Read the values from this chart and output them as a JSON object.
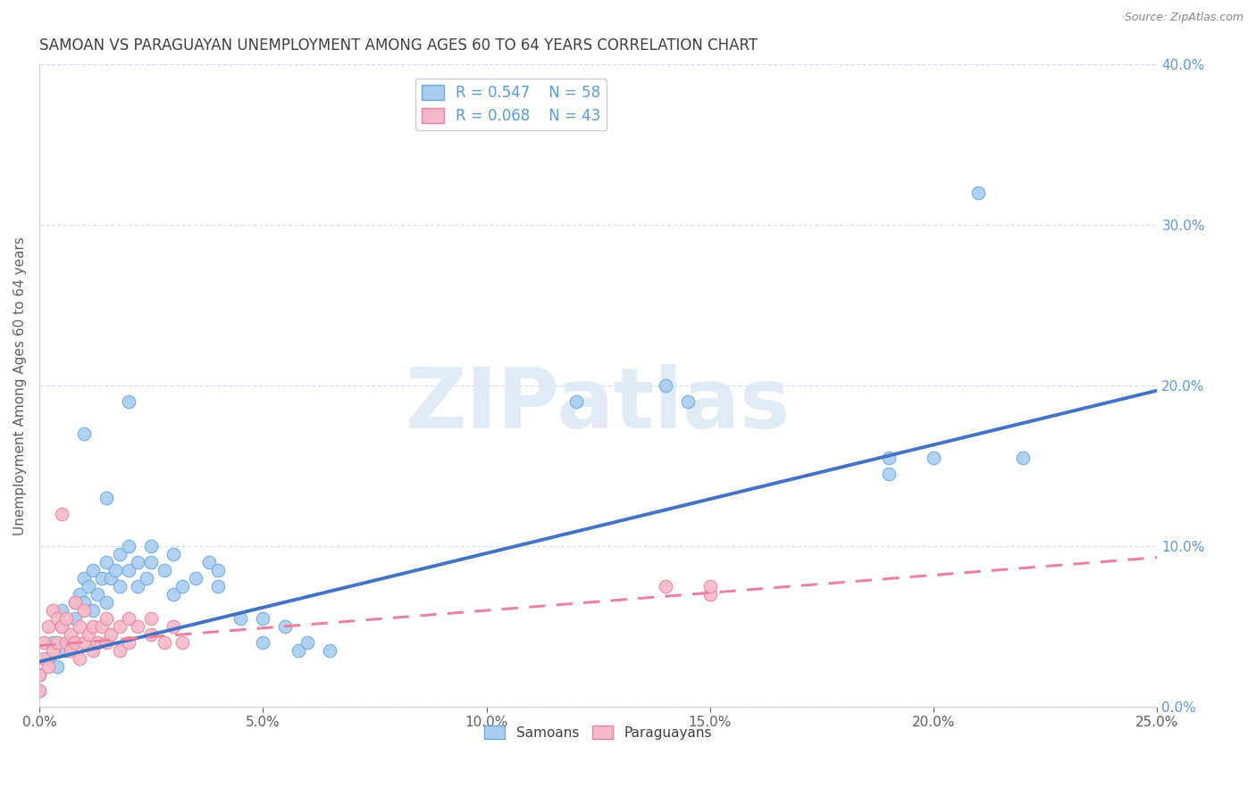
{
  "title": "SAMOAN VS PARAGUAYAN UNEMPLOYMENT AMONG AGES 60 TO 64 YEARS CORRELATION CHART",
  "source": "Source: ZipAtlas.com",
  "xlim": [
    0.0,
    0.25
  ],
  "ylim": [
    0.0,
    0.4
  ],
  "samoan_R": 0.547,
  "samoan_N": 58,
  "paraguayan_R": 0.068,
  "paraguayan_N": 43,
  "samoan_color": "#a8ccf0",
  "paraguayan_color": "#f5b8c8",
  "samoan_edge_color": "#6aaade",
  "paraguayan_edge_color": "#e882a0",
  "samoan_line_color": "#4472c4",
  "paraguayan_line_color": "#e882a0",
  "title_fontsize": 12,
  "title_color": "#404040",
  "axis_label": "Unemployment Among Ages 60 to 64 years",
  "axis_label_color": "#606060",
  "tick_color_y": "#5b9bd5",
  "tick_color_x": "#606060",
  "watermark_text": "ZIPatlas",
  "watermark_color": "#dce8f5",
  "background_color": "#ffffff",
  "grid_color": "#c8d8e8",
  "samoan_scatter": [
    [
      0.0,
      0.02
    ],
    [
      0.0,
      0.01
    ],
    [
      0.002,
      0.03
    ],
    [
      0.003,
      0.04
    ],
    [
      0.004,
      0.025
    ],
    [
      0.005,
      0.05
    ],
    [
      0.005,
      0.06
    ],
    [
      0.006,
      0.035
    ],
    [
      0.007,
      0.04
    ],
    [
      0.008,
      0.055
    ],
    [
      0.008,
      0.065
    ],
    [
      0.009,
      0.07
    ],
    [
      0.01,
      0.08
    ],
    [
      0.01,
      0.065
    ],
    [
      0.011,
      0.075
    ],
    [
      0.012,
      0.085
    ],
    [
      0.012,
      0.06
    ],
    [
      0.013,
      0.07
    ],
    [
      0.014,
      0.08
    ],
    [
      0.015,
      0.09
    ],
    [
      0.015,
      0.065
    ],
    [
      0.016,
      0.08
    ],
    [
      0.017,
      0.085
    ],
    [
      0.018,
      0.075
    ],
    [
      0.018,
      0.095
    ],
    [
      0.02,
      0.085
    ],
    [
      0.02,
      0.1
    ],
    [
      0.022,
      0.09
    ],
    [
      0.022,
      0.075
    ],
    [
      0.024,
      0.08
    ],
    [
      0.025,
      0.09
    ],
    [
      0.025,
      0.1
    ],
    [
      0.028,
      0.085
    ],
    [
      0.03,
      0.095
    ],
    [
      0.03,
      0.07
    ],
    [
      0.032,
      0.075
    ],
    [
      0.035,
      0.08
    ],
    [
      0.038,
      0.09
    ],
    [
      0.04,
      0.075
    ],
    [
      0.04,
      0.085
    ],
    [
      0.045,
      0.055
    ],
    [
      0.05,
      0.04
    ],
    [
      0.05,
      0.055
    ],
    [
      0.055,
      0.05
    ],
    [
      0.058,
      0.035
    ],
    [
      0.06,
      0.04
    ],
    [
      0.065,
      0.035
    ],
    [
      0.01,
      0.17
    ],
    [
      0.015,
      0.13
    ],
    [
      0.02,
      0.19
    ],
    [
      0.12,
      0.19
    ],
    [
      0.14,
      0.2
    ],
    [
      0.145,
      0.19
    ],
    [
      0.19,
      0.155
    ],
    [
      0.19,
      0.145
    ],
    [
      0.2,
      0.155
    ],
    [
      0.21,
      0.32
    ],
    [
      0.22,
      0.155
    ]
  ],
  "paraguayan_scatter": [
    [
      0.0,
      0.02
    ],
    [
      0.0,
      0.01
    ],
    [
      0.001,
      0.03
    ],
    [
      0.001,
      0.04
    ],
    [
      0.002,
      0.025
    ],
    [
      0.002,
      0.05
    ],
    [
      0.003,
      0.035
    ],
    [
      0.003,
      0.06
    ],
    [
      0.004,
      0.04
    ],
    [
      0.004,
      0.055
    ],
    [
      0.005,
      0.05
    ],
    [
      0.005,
      0.12
    ],
    [
      0.006,
      0.04
    ],
    [
      0.006,
      0.055
    ],
    [
      0.007,
      0.035
    ],
    [
      0.007,
      0.045
    ],
    [
      0.008,
      0.04
    ],
    [
      0.008,
      0.065
    ],
    [
      0.009,
      0.03
    ],
    [
      0.009,
      0.05
    ],
    [
      0.01,
      0.04
    ],
    [
      0.01,
      0.06
    ],
    [
      0.011,
      0.045
    ],
    [
      0.012,
      0.05
    ],
    [
      0.012,
      0.035
    ],
    [
      0.013,
      0.04
    ],
    [
      0.014,
      0.05
    ],
    [
      0.015,
      0.04
    ],
    [
      0.015,
      0.055
    ],
    [
      0.016,
      0.045
    ],
    [
      0.018,
      0.05
    ],
    [
      0.018,
      0.035
    ],
    [
      0.02,
      0.04
    ],
    [
      0.02,
      0.055
    ],
    [
      0.022,
      0.05
    ],
    [
      0.025,
      0.045
    ],
    [
      0.025,
      0.055
    ],
    [
      0.028,
      0.04
    ],
    [
      0.03,
      0.05
    ],
    [
      0.032,
      0.04
    ],
    [
      0.14,
      0.075
    ],
    [
      0.15,
      0.07
    ],
    [
      0.15,
      0.075
    ]
  ],
  "samoan_reg_line": [
    [
      0.0,
      0.028
    ],
    [
      0.25,
      0.197
    ]
  ],
  "paraguayan_reg_line": [
    [
      0.0,
      0.038
    ],
    [
      0.25,
      0.093
    ]
  ]
}
